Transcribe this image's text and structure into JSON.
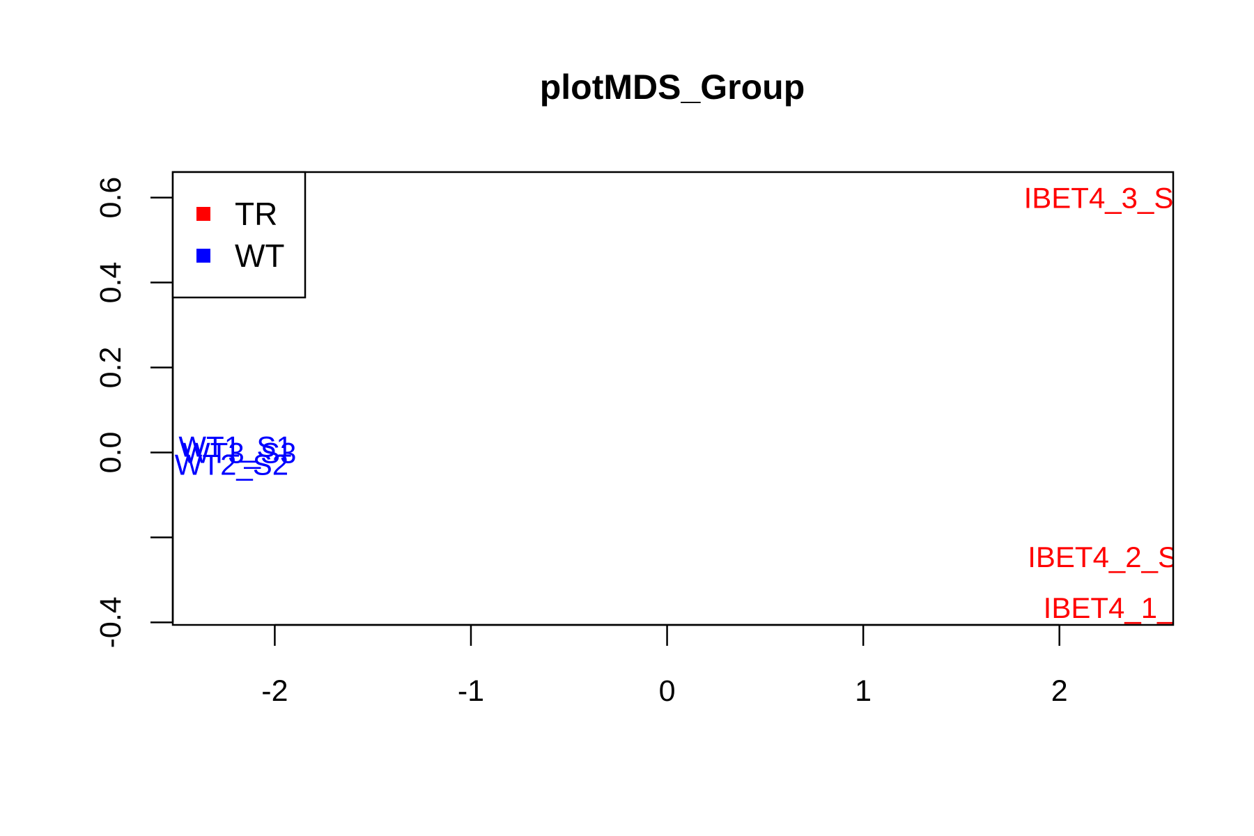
{
  "chart_data": {
    "type": "scatter",
    "title": "plotMDS_Group",
    "xlabel": "",
    "ylabel": "",
    "xlim": [
      -2.52,
      2.58
    ],
    "ylim": [
      -0.406,
      0.66
    ],
    "x_ticks": [
      {
        "value": -2,
        "label": "-2"
      },
      {
        "value": -1,
        "label": "-1"
      },
      {
        "value": 0,
        "label": "0"
      },
      {
        "value": 1,
        "label": "1"
      },
      {
        "value": 2,
        "label": "2"
      }
    ],
    "y_ticks": [
      {
        "value": -0.4,
        "label": "-0.4"
      },
      {
        "value": -0.2,
        "label": ""
      },
      {
        "value": 0.0,
        "label": "0.0"
      },
      {
        "value": 0.2,
        "label": "0.2"
      },
      {
        "value": 0.4,
        "label": "0.4"
      },
      {
        "value": 0.6,
        "label": "0.6"
      }
    ],
    "grid": false,
    "legend": {
      "placement": "top-left",
      "entries": [
        {
          "label": "TR",
          "color": "#ff0000"
        },
        {
          "label": "WT",
          "color": "#0000ff"
        }
      ]
    },
    "points": [
      {
        "label": "WT1_S1",
        "x": -2.2,
        "y": 0.015,
        "group": "WT",
        "color": "#0000ff"
      },
      {
        "label": "WT3_S3",
        "x": -2.18,
        "y": 0.0,
        "group": "WT",
        "color": "#0000ff"
      },
      {
        "label": "WT2_S2",
        "x": -2.22,
        "y": -0.028,
        "group": "WT",
        "color": "#0000ff"
      },
      {
        "label": "IBET4_3_S",
        "x": 2.2,
        "y": 0.6,
        "group": "TR",
        "color": "#ff0000"
      },
      {
        "label": "IBET4_2_S",
        "x": 2.22,
        "y": -0.245,
        "group": "TR",
        "color": "#ff0000"
      },
      {
        "label": "IBET4_1_",
        "x": 2.25,
        "y": -0.365,
        "group": "TR",
        "color": "#ff0000"
      }
    ]
  }
}
